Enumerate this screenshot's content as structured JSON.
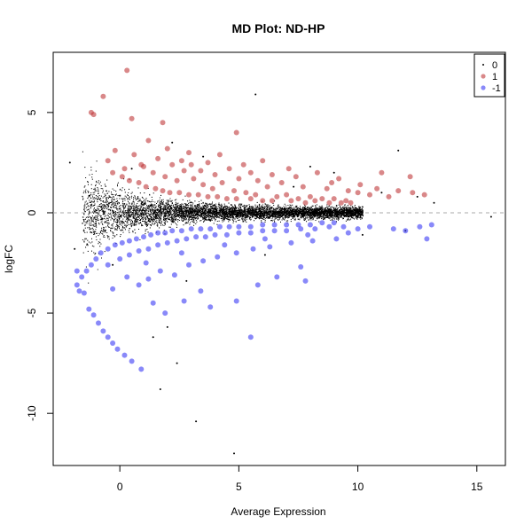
{
  "chart_data": {
    "type": "scatter",
    "title": "MD Plot: ND-HP",
    "xlabel": "Average Expression",
    "ylabel": "logFC",
    "xlim": [
      -2.8,
      16.2
    ],
    "ylim": [
      -12.6,
      8.0
    ],
    "x_ticks": [
      0,
      5,
      10,
      15
    ],
    "y_ticks": [
      -10,
      -5,
      0,
      5
    ],
    "x_tick_labels": [
      "0",
      "5",
      "10",
      "15"
    ],
    "y_tick_labels": [
      "-10",
      "-5",
      "0",
      "5"
    ],
    "reference_line_y": 0,
    "legend": {
      "position": "top-right",
      "entries": [
        {
          "label": "0",
          "color": "#000000"
        },
        {
          "label": "1",
          "color": "#c0393b"
        },
        {
          "label": "-1",
          "color": "#3b3bf5"
        }
      ]
    },
    "series": [
      {
        "name": "0",
        "color": "#000000",
        "points": [
          [
            5.7,
            5.9
          ],
          [
            3.2,
            -10.4
          ],
          [
            4.8,
            -12.0
          ],
          [
            11.7,
            3.1
          ],
          [
            15.6,
            -0.2
          ],
          [
            1.7,
            -8.8
          ],
          [
            2.4,
            -7.5
          ],
          [
            1.4,
            -6.2
          ],
          [
            2.0,
            -5.7
          ],
          [
            2.2,
            3.5
          ],
          [
            3.5,
            2.8
          ],
          [
            8.0,
            2.3
          ],
          [
            9.0,
            2.0
          ],
          [
            12.5,
            0.8
          ],
          [
            13.2,
            0.5
          ],
          [
            -1.9,
            -1.8
          ],
          [
            -2.1,
            2.5
          ],
          [
            -0.3,
            -2.6
          ],
          [
            0.5,
            2.2
          ],
          [
            2.8,
            -3.4
          ],
          [
            6.1,
            -2.1
          ],
          [
            7.3,
            1.3
          ],
          [
            10.2,
            -1.1
          ],
          [
            11.0,
            1.0
          ],
          [
            12.0,
            -0.9
          ]
        ]
      },
      {
        "name": "1",
        "color": "#c0393b",
        "points": [
          [
            0.3,
            7.1
          ],
          [
            -0.7,
            5.8
          ],
          [
            -1.2,
            5.0
          ],
          [
            -1.1,
            4.9
          ],
          [
            0.5,
            4.7
          ],
          [
            1.8,
            4.5
          ],
          [
            4.9,
            4.0
          ],
          [
            1.2,
            3.6
          ],
          [
            2.0,
            3.2
          ],
          [
            2.9,
            3.0
          ],
          [
            4.2,
            2.9
          ],
          [
            3.7,
            2.5
          ],
          [
            5.2,
            2.4
          ],
          [
            6.0,
            2.6
          ],
          [
            7.1,
            2.2
          ],
          [
            8.3,
            2.0
          ],
          [
            9.2,
            1.7
          ],
          [
            10.1,
            1.4
          ],
          [
            11.0,
            2.0
          ],
          [
            12.2,
            1.8
          ],
          [
            11.7,
            1.1
          ],
          [
            12.3,
            1.0
          ],
          [
            -0.5,
            2.6
          ],
          [
            -0.2,
            3.1
          ],
          [
            0.2,
            2.2
          ],
          [
            0.6,
            2.9
          ],
          [
            0.9,
            2.4
          ],
          [
            1.4,
            2.0
          ],
          [
            1.9,
            1.8
          ],
          [
            2.4,
            1.6
          ],
          [
            2.7,
            2.1
          ],
          [
            3.1,
            1.7
          ],
          [
            3.5,
            1.4
          ],
          [
            3.9,
            1.2
          ],
          [
            4.3,
            1.5
          ],
          [
            4.8,
            1.1
          ],
          [
            5.3,
            1.0
          ],
          [
            5.7,
            0.9
          ],
          [
            6.2,
            1.3
          ],
          [
            6.6,
            0.8
          ],
          [
            7.0,
            0.9
          ],
          [
            7.5,
            0.7
          ],
          [
            8.0,
            0.8
          ],
          [
            8.5,
            0.7
          ],
          [
            9.0,
            0.7
          ],
          [
            9.5,
            0.6
          ],
          [
            10.0,
            1.0
          ],
          [
            10.5,
            0.9
          ],
          [
            11.3,
            0.8
          ],
          [
            12.8,
            0.9
          ],
          [
            -0.3,
            2.0
          ],
          [
            0.1,
            1.8
          ],
          [
            0.4,
            1.6
          ],
          [
            0.8,
            1.5
          ],
          [
            1.1,
            1.3
          ],
          [
            1.5,
            1.2
          ],
          [
            1.8,
            1.1
          ],
          [
            2.1,
            1.0
          ],
          [
            2.5,
            1.0
          ],
          [
            2.9,
            0.9
          ],
          [
            3.3,
            0.9
          ],
          [
            3.7,
            0.8
          ],
          [
            4.1,
            0.8
          ],
          [
            4.5,
            0.7
          ],
          [
            4.9,
            0.7
          ],
          [
            5.5,
            0.7
          ],
          [
            6.0,
            0.6
          ],
          [
            6.4,
            0.6
          ],
          [
            7.2,
            0.6
          ],
          [
            7.8,
            0.5
          ],
          [
            8.2,
            0.6
          ],
          [
            8.8,
            0.5
          ],
          [
            9.3,
            0.5
          ],
          [
            9.7,
            0.5
          ],
          [
            1.0,
            2.3
          ],
          [
            2.2,
            2.4
          ],
          [
            3.4,
            2.1
          ],
          [
            4.0,
            1.9
          ],
          [
            5.0,
            1.7
          ],
          [
            5.8,
            1.6
          ],
          [
            6.8,
            1.5
          ],
          [
            7.7,
            1.3
          ],
          [
            8.7,
            1.2
          ],
          [
            9.6,
            1.1
          ],
          [
            10.8,
            1.2
          ],
          [
            1.6,
            2.7
          ],
          [
            2.6,
            2.6
          ],
          [
            3.0,
            2.4
          ],
          [
            4.6,
            2.2
          ],
          [
            5.5,
            2.0
          ],
          [
            6.4,
            1.9
          ],
          [
            7.4,
            1.8
          ],
          [
            8.9,
            1.5
          ]
        ]
      },
      {
        "name": "-1",
        "color": "#3b3bf5",
        "points": [
          [
            -1.3,
            -4.8
          ],
          [
            -1.1,
            -5.1
          ],
          [
            -0.9,
            -5.5
          ],
          [
            -0.7,
            -5.9
          ],
          [
            -0.5,
            -6.2
          ],
          [
            -0.3,
            -6.5
          ],
          [
            -0.1,
            -6.8
          ],
          [
            0.2,
            -7.1
          ],
          [
            0.5,
            -7.4
          ],
          [
            0.9,
            -7.8
          ],
          [
            -1.8,
            -3.6
          ],
          [
            -1.6,
            -3.2
          ],
          [
            -1.4,
            -2.9
          ],
          [
            -1.2,
            -2.6
          ],
          [
            -1.0,
            -2.3
          ],
          [
            -1.5,
            -4.0
          ],
          [
            -1.7,
            -3.9
          ],
          [
            -1.8,
            -2.9
          ],
          [
            -0.8,
            -2.0
          ],
          [
            -0.5,
            -1.8
          ],
          [
            -0.2,
            -1.6
          ],
          [
            0.1,
            -1.5
          ],
          [
            0.4,
            -1.4
          ],
          [
            0.7,
            -1.3
          ],
          [
            1.0,
            -1.2
          ],
          [
            1.3,
            -1.1
          ],
          [
            1.6,
            -1.0
          ],
          [
            1.9,
            -1.0
          ],
          [
            2.2,
            -0.9
          ],
          [
            2.6,
            -0.9
          ],
          [
            3.0,
            -0.8
          ],
          [
            3.4,
            -0.8
          ],
          [
            3.8,
            -0.8
          ],
          [
            4.2,
            -0.7
          ],
          [
            4.6,
            -0.7
          ],
          [
            5.0,
            -0.7
          ],
          [
            5.5,
            -0.7
          ],
          [
            6.0,
            -0.6
          ],
          [
            6.5,
            -0.6
          ],
          [
            7.0,
            -0.6
          ],
          [
            7.5,
            -0.6
          ],
          [
            8.0,
            -0.6
          ],
          [
            8.5,
            -0.5
          ],
          [
            9.0,
            -0.5
          ],
          [
            -0.5,
            -2.6
          ],
          [
            0.0,
            -2.3
          ],
          [
            0.4,
            -2.1
          ],
          [
            0.8,
            -1.9
          ],
          [
            1.2,
            -1.8
          ],
          [
            1.6,
            -1.6
          ],
          [
            2.0,
            -1.5
          ],
          [
            2.4,
            -1.4
          ],
          [
            2.8,
            -1.3
          ],
          [
            3.2,
            -1.2
          ],
          [
            3.6,
            -1.2
          ],
          [
            4.0,
            -1.1
          ],
          [
            4.5,
            -1.1
          ],
          [
            5.0,
            -1.0
          ],
          [
            5.5,
            -1.0
          ],
          [
            6.0,
            -0.9
          ],
          [
            6.5,
            -0.9
          ],
          [
            7.0,
            -0.9
          ],
          [
            7.6,
            -0.8
          ],
          [
            8.2,
            -0.8
          ],
          [
            8.8,
            -0.7
          ],
          [
            9.4,
            -0.7
          ],
          [
            10.0,
            -0.8
          ],
          [
            10.5,
            -0.7
          ],
          [
            11.5,
            -0.8
          ],
          [
            12.0,
            -0.9
          ],
          [
            12.6,
            -0.7
          ],
          [
            13.1,
            -0.6
          ],
          [
            12.9,
            -1.3
          ],
          [
            0.3,
            -3.2
          ],
          [
            0.8,
            -3.6
          ],
          [
            1.2,
            -3.3
          ],
          [
            1.7,
            -2.9
          ],
          [
            2.3,
            -3.1
          ],
          [
            2.9,
            -2.6
          ],
          [
            3.5,
            -2.4
          ],
          [
            4.1,
            -2.2
          ],
          [
            4.9,
            -2.0
          ],
          [
            5.6,
            -1.8
          ],
          [
            6.3,
            -1.7
          ],
          [
            7.2,
            -1.5
          ],
          [
            8.1,
            -1.4
          ],
          [
            9.1,
            -1.3
          ],
          [
            1.4,
            -4.5
          ],
          [
            1.9,
            -5.0
          ],
          [
            2.7,
            -4.4
          ],
          [
            3.4,
            -3.9
          ],
          [
            3.8,
            -4.7
          ],
          [
            4.9,
            -4.4
          ],
          [
            5.8,
            -3.6
          ],
          [
            6.6,
            -3.2
          ],
          [
            7.6,
            -2.7
          ],
          [
            7.8,
            -3.4
          ],
          [
            5.5,
            -6.2
          ],
          [
            -0.3,
            -3.8
          ],
          [
            1.1,
            -2.5
          ],
          [
            2.6,
            -2.0
          ],
          [
            4.4,
            -1.6
          ],
          [
            6.1,
            -1.3
          ],
          [
            7.9,
            -1.1
          ],
          [
            9.6,
            -1.0
          ]
        ]
      }
    ]
  }
}
